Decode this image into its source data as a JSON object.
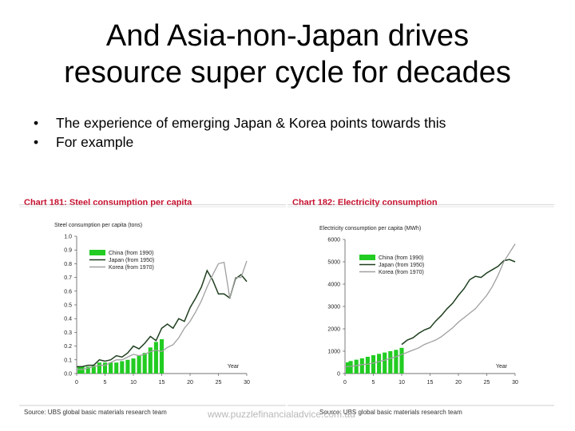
{
  "slide": {
    "title_line1": "And Asia-non-Japan drives",
    "title_line2": "resource super cycle for decades",
    "bullets": [
      "The experience of emerging Japan & Korea points towards this",
      "For example"
    ],
    "watermark": "www.puzzlefinancialadvice.com.au",
    "colors": {
      "china": "#22cc22",
      "japan": "#1f3f1f",
      "korea": "#a0a0a0",
      "chart_title": "#c8102e"
    }
  },
  "chart_data": [
    {
      "type": "line",
      "title": "Chart 181: Steel consumption per capita",
      "ylabel": "Steel consumption per capita (tons)",
      "xlabel": "Year",
      "xlim": [
        0,
        30
      ],
      "ylim": [
        0,
        1.0
      ],
      "x_ticks": [
        0,
        5,
        10,
        15,
        20,
        25,
        30
      ],
      "y_ticks": [
        0,
        0.1,
        0.2,
        0.3,
        0.4,
        0.5,
        0.6,
        0.7,
        0.8,
        0.9,
        1.0
      ],
      "y_tick_labels": [
        "0.0",
        "0.1",
        "0.2",
        "0.3",
        "0.4",
        "0.5",
        "0.6",
        "0.7",
        "0.8",
        "0.9",
        "1.0"
      ],
      "source": "Source: UBS global basic materials research team",
      "series": [
        {
          "name": "China (from 1990)",
          "kind": "bar",
          "x": [
            0,
            1,
            2,
            3,
            4,
            5,
            6,
            7,
            8,
            9,
            10,
            11,
            12,
            13,
            14,
            15
          ],
          "values": [
            0.05,
            0.05,
            0.05,
            0.06,
            0.08,
            0.08,
            0.08,
            0.08,
            0.09,
            0.1,
            0.11,
            0.13,
            0.15,
            0.19,
            0.23,
            0.25
          ]
        },
        {
          "name": "Japan (from 1950)",
          "kind": "line",
          "x": [
            0,
            1,
            2,
            3,
            4,
            5,
            6,
            7,
            8,
            9,
            10,
            11,
            12,
            13,
            14,
            15,
            16,
            17,
            18,
            19,
            20,
            21,
            22,
            23,
            24,
            25,
            26,
            27,
            28,
            29,
            30
          ],
          "values": [
            0.05,
            0.05,
            0.06,
            0.06,
            0.1,
            0.09,
            0.1,
            0.13,
            0.12,
            0.15,
            0.2,
            0.18,
            0.22,
            0.27,
            0.24,
            0.33,
            0.36,
            0.33,
            0.4,
            0.38,
            0.48,
            0.55,
            0.63,
            0.75,
            0.68,
            0.58,
            0.58,
            0.55,
            0.69,
            0.72,
            0.67
          ]
        },
        {
          "name": "Korea (from 1970)",
          "kind": "line",
          "x": [
            0,
            1,
            2,
            3,
            4,
            5,
            6,
            7,
            8,
            9,
            10,
            11,
            12,
            13,
            14,
            15,
            16,
            17,
            18,
            19,
            20,
            21,
            22,
            23,
            24,
            25,
            26,
            27,
            28,
            29,
            30
          ],
          "values": [
            0.03,
            0.03,
            0.04,
            0.05,
            0.06,
            0.06,
            0.08,
            0.1,
            0.1,
            0.12,
            0.14,
            0.13,
            0.14,
            0.16,
            0.17,
            0.16,
            0.19,
            0.21,
            0.26,
            0.33,
            0.38,
            0.45,
            0.53,
            0.63,
            0.72,
            0.8,
            0.81,
            0.55,
            0.7,
            0.7,
            0.82
          ]
        }
      ]
    },
    {
      "type": "line",
      "title": "Chart 182: Electricity consumption",
      "ylabel": "Electricity consumption per capita (MWh)",
      "xlabel": "Year",
      "xlim": [
        0,
        30
      ],
      "ylim": [
        0,
        6000
      ],
      "x_ticks": [
        0,
        5,
        10,
        15,
        20,
        25,
        30
      ],
      "y_ticks": [
        0,
        1000,
        2000,
        3000,
        4000,
        5000,
        6000
      ],
      "y_tick_labels": [
        "0",
        "1000",
        "2000",
        "3000",
        "4000",
        "5000",
        "6000"
      ],
      "source": "Source: UBS global basic materials research team",
      "series": [
        {
          "name": "China (from 1990)",
          "kind": "bar",
          "x": [
            0,
            1,
            2,
            3,
            4,
            5,
            6,
            7,
            8,
            9,
            10
          ],
          "values": [
            500,
            560,
            620,
            680,
            750,
            820,
            880,
            940,
            1000,
            1060,
            1150
          ]
        },
        {
          "name": "Japan (from 1950)",
          "kind": "line",
          "x": [
            10,
            11,
            12,
            13,
            14,
            15,
            16,
            17,
            18,
            19,
            20,
            21,
            22,
            23,
            24,
            25,
            26,
            27,
            28,
            29,
            30
          ],
          "values": [
            1300,
            1500,
            1600,
            1800,
            1950,
            2050,
            2350,
            2600,
            2900,
            3150,
            3500,
            3800,
            4200,
            4350,
            4300,
            4500,
            4650,
            4800,
            5050,
            5100,
            5000
          ]
        },
        {
          "name": "Korea (from 1970)",
          "kind": "line",
          "x": [
            0,
            1,
            2,
            3,
            4,
            5,
            6,
            7,
            8,
            9,
            10,
            11,
            12,
            13,
            14,
            15,
            16,
            17,
            18,
            19,
            20,
            21,
            22,
            23,
            24,
            25,
            26,
            27,
            28,
            29,
            30
          ],
          "values": [
            300,
            320,
            350,
            400,
            420,
            470,
            530,
            600,
            680,
            750,
            850,
            950,
            1050,
            1150,
            1300,
            1400,
            1500,
            1650,
            1850,
            2050,
            2300,
            2500,
            2700,
            2900,
            3200,
            3500,
            3900,
            4400,
            5000,
            5400,
            5800
          ]
        }
      ]
    }
  ]
}
